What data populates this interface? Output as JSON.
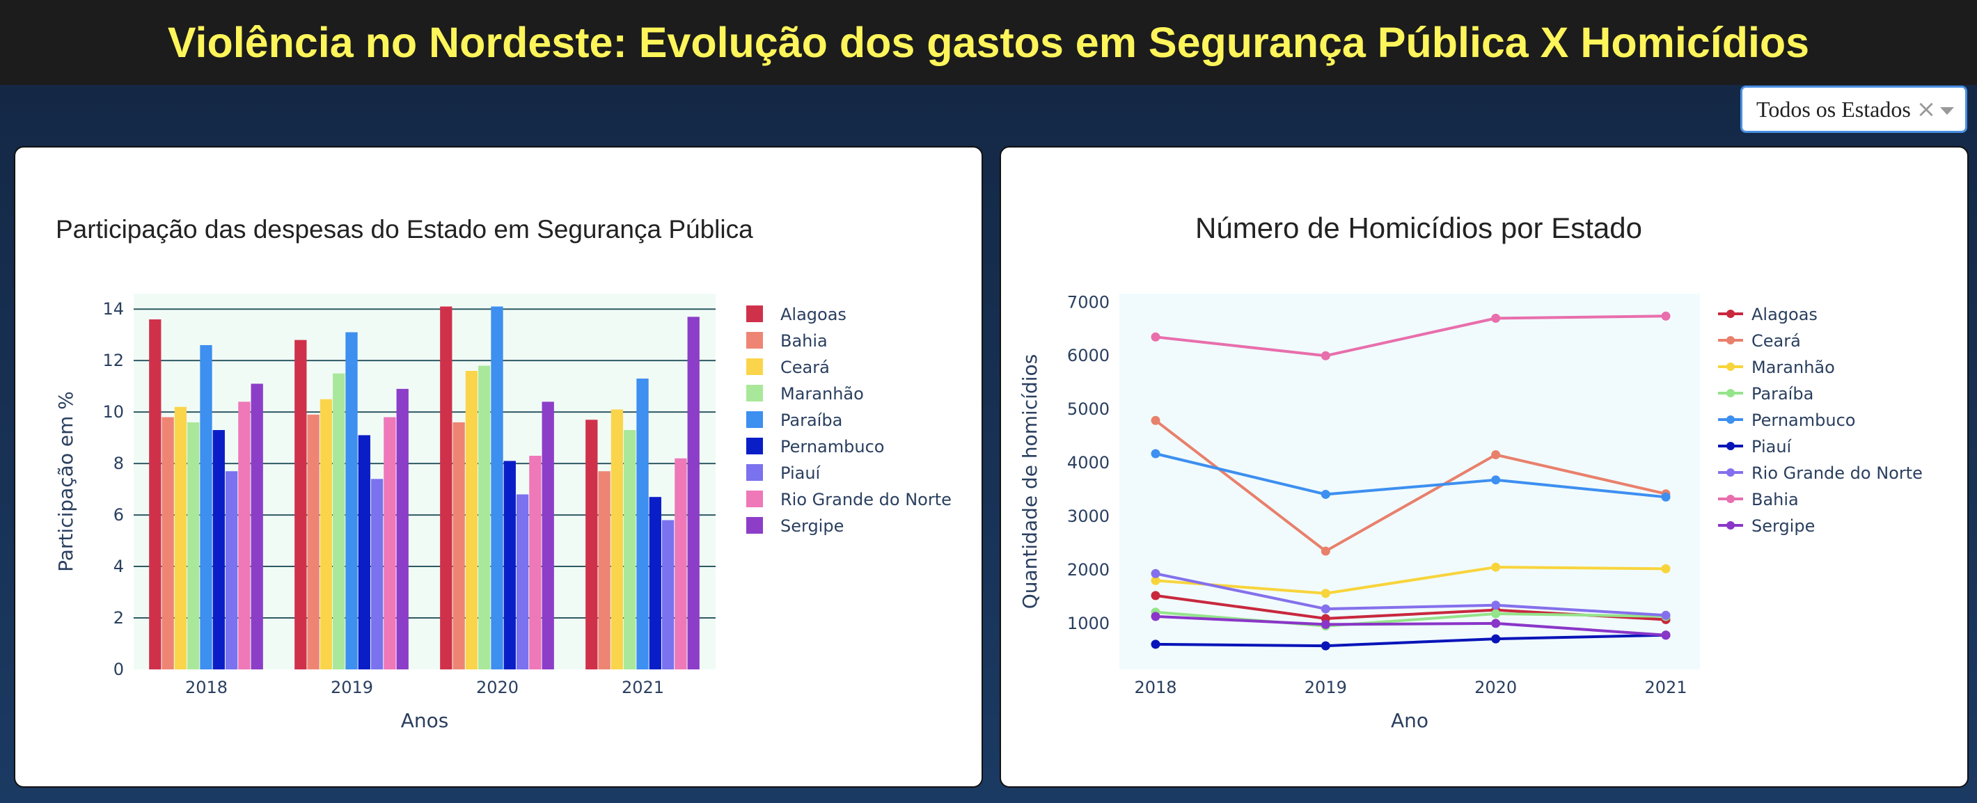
{
  "header": {
    "title": "Violência no Nordeste: Evolução dos gastos em Segurança Pública X Homicídios"
  },
  "filter": {
    "selected_value": "Todos os Estados",
    "clear_glyph": "×",
    "caret_icon": "chevron-down-icon"
  },
  "chart_data": [
    {
      "type": "bar",
      "title": "Participação das despesas do Estado em Segurança Pública",
      "xlabel": "Anos",
      "ylabel": "Participação em %",
      "categories": [
        "2018",
        "2019",
        "2020",
        "2021"
      ],
      "ylim": [
        0,
        14.6
      ],
      "yticks": [
        0,
        2,
        4,
        6,
        8,
        10,
        12,
        14
      ],
      "grid": true,
      "legend_position": "right",
      "series": [
        {
          "name": "Alagoas",
          "color": "#d0314a",
          "values": [
            13.6,
            12.8,
            14.1,
            9.7
          ]
        },
        {
          "name": "Bahia",
          "color": "#ee8574",
          "values": [
            9.8,
            9.9,
            9.6,
            7.7
          ]
        },
        {
          "name": "Ceará",
          "color": "#fad54c",
          "values": [
            10.2,
            10.5,
            11.6,
            10.1
          ]
        },
        {
          "name": "Maranhão",
          "color": "#a9e89a",
          "values": [
            9.6,
            11.5,
            11.8,
            9.3
          ]
        },
        {
          "name": "Paraíba",
          "color": "#3d8ff0",
          "values": [
            12.6,
            13.1,
            14.1,
            11.3
          ]
        },
        {
          "name": "Pernambuco",
          "color": "#0a1ec8",
          "values": [
            9.3,
            9.1,
            8.1,
            6.7
          ]
        },
        {
          "name": "Piauí",
          "color": "#7a72ee",
          "values": [
            7.7,
            7.4,
            6.8,
            5.8
          ]
        },
        {
          "name": "Rio Grande do Norte",
          "color": "#ee78b8",
          "values": [
            10.4,
            9.8,
            8.3,
            8.2
          ]
        },
        {
          "name": "Sergipe",
          "color": "#8c3ec8",
          "values": [
            11.1,
            10.9,
            10.4,
            13.7
          ]
        }
      ]
    },
    {
      "type": "line",
      "title": "Número de Homicídios por Estado",
      "xlabel": "Ano",
      "ylabel": "Quantidade de homicídios",
      "x": [
        "2018",
        "2019",
        "2020",
        "2021"
      ],
      "ylim": [
        140,
        7160
      ],
      "yticks": [
        1000,
        2000,
        3000,
        4000,
        5000,
        6000,
        7000
      ],
      "grid": false,
      "legend_position": "right",
      "series": [
        {
          "name": "Alagoas",
          "color": "#c8283e",
          "values": [
            1520,
            1090,
            1250,
            1070
          ]
        },
        {
          "name": "Ceará",
          "color": "#e8806c",
          "values": [
            4790,
            2350,
            4150,
            3420
          ]
        },
        {
          "name": "Maranhão",
          "color": "#f8d43c",
          "values": [
            1800,
            1560,
            2050,
            2020
          ]
        },
        {
          "name": "Paraíba",
          "color": "#94e48a",
          "values": [
            1210,
            950,
            1180,
            1130
          ]
        },
        {
          "name": "Pernambuco",
          "color": "#3d8ff0",
          "values": [
            4170,
            3410,
            3680,
            3360
          ]
        },
        {
          "name": "Piauí",
          "color": "#0814b8",
          "values": [
            610,
            580,
            710,
            780
          ]
        },
        {
          "name": "Rio Grande do Norte",
          "color": "#8470ec",
          "values": [
            1930,
            1270,
            1340,
            1150
          ]
        },
        {
          "name": "Bahia",
          "color": "#e86eac",
          "values": [
            6350,
            6000,
            6700,
            6740
          ]
        },
        {
          "name": "Sergipe",
          "color": "#8a36c8",
          "values": [
            1130,
            980,
            1000,
            780
          ]
        }
      ]
    }
  ]
}
